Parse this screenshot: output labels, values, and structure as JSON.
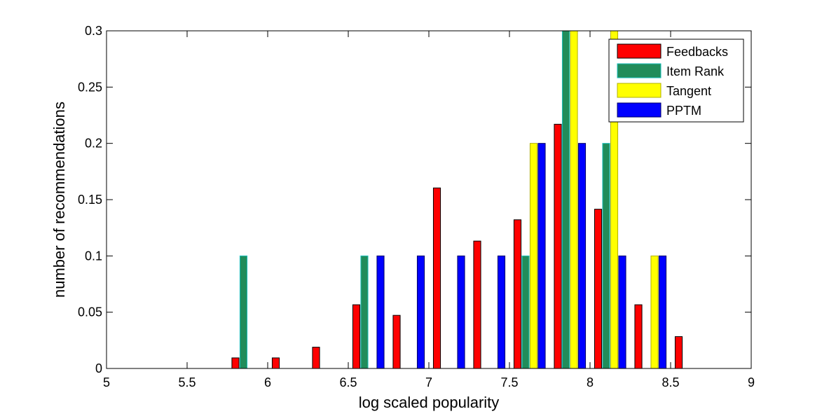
{
  "chart_data": {
    "type": "bar",
    "title": "",
    "xlabel": "log scaled popularity",
    "ylabel": "number of recommendations",
    "xlim": [
      5,
      9
    ],
    "ylim": [
      0,
      0.3
    ],
    "xticks": [
      5,
      5.5,
      6,
      6.5,
      7,
      7.5,
      8,
      8.5,
      9
    ],
    "xtick_labels": [
      "5",
      "5.5",
      "6",
      "6.5",
      "7",
      "7.5",
      "8",
      "8.5",
      "9"
    ],
    "yticks": [
      0,
      0.05,
      0.1,
      0.15,
      0.2,
      0.25,
      0.3
    ],
    "ytick_labels": [
      "0",
      "0.05",
      "0.1",
      "0.15",
      "0.2",
      "0.25",
      "0.3"
    ],
    "grid": false,
    "legend_position": "top-right",
    "categories": [
      5.125,
      5.375,
      5.625,
      5.875,
      6.125,
      6.375,
      6.625,
      6.875,
      7.125,
      7.375,
      7.625,
      7.875,
      8.125,
      8.375,
      8.625,
      8.875
    ],
    "series": [
      {
        "name": "Feedbacks",
        "color": "#ff0000",
        "values": [
          0,
          0,
          0,
          0.0094,
          0.0094,
          0.0189,
          0.0566,
          0.0472,
          0.1604,
          0.1132,
          0.1321,
          0.217,
          0.1415,
          0.0566,
          0.0283,
          0
        ]
      },
      {
        "name": "Item Rank",
        "color": "#218c5a",
        "values": [
          0,
          0,
          0,
          0.1,
          0,
          0,
          0.1,
          0,
          0,
          0,
          0.1,
          0.3,
          0.2,
          0,
          0,
          0
        ]
      },
      {
        "name": "Tangent",
        "color": "#ffff00",
        "values": [
          0,
          0,
          0,
          0,
          0,
          0,
          0,
          0,
          0,
          0,
          0.2,
          0.3,
          0.3,
          0.1,
          0,
          0
        ]
      },
      {
        "name": "PPTM",
        "color": "#0000ff",
        "values": [
          0,
          0,
          0,
          0,
          0,
          0,
          0.1,
          0.1,
          0.1,
          0.1,
          0.2,
          0.2,
          0.1,
          0.1,
          0,
          0
        ]
      }
    ]
  }
}
